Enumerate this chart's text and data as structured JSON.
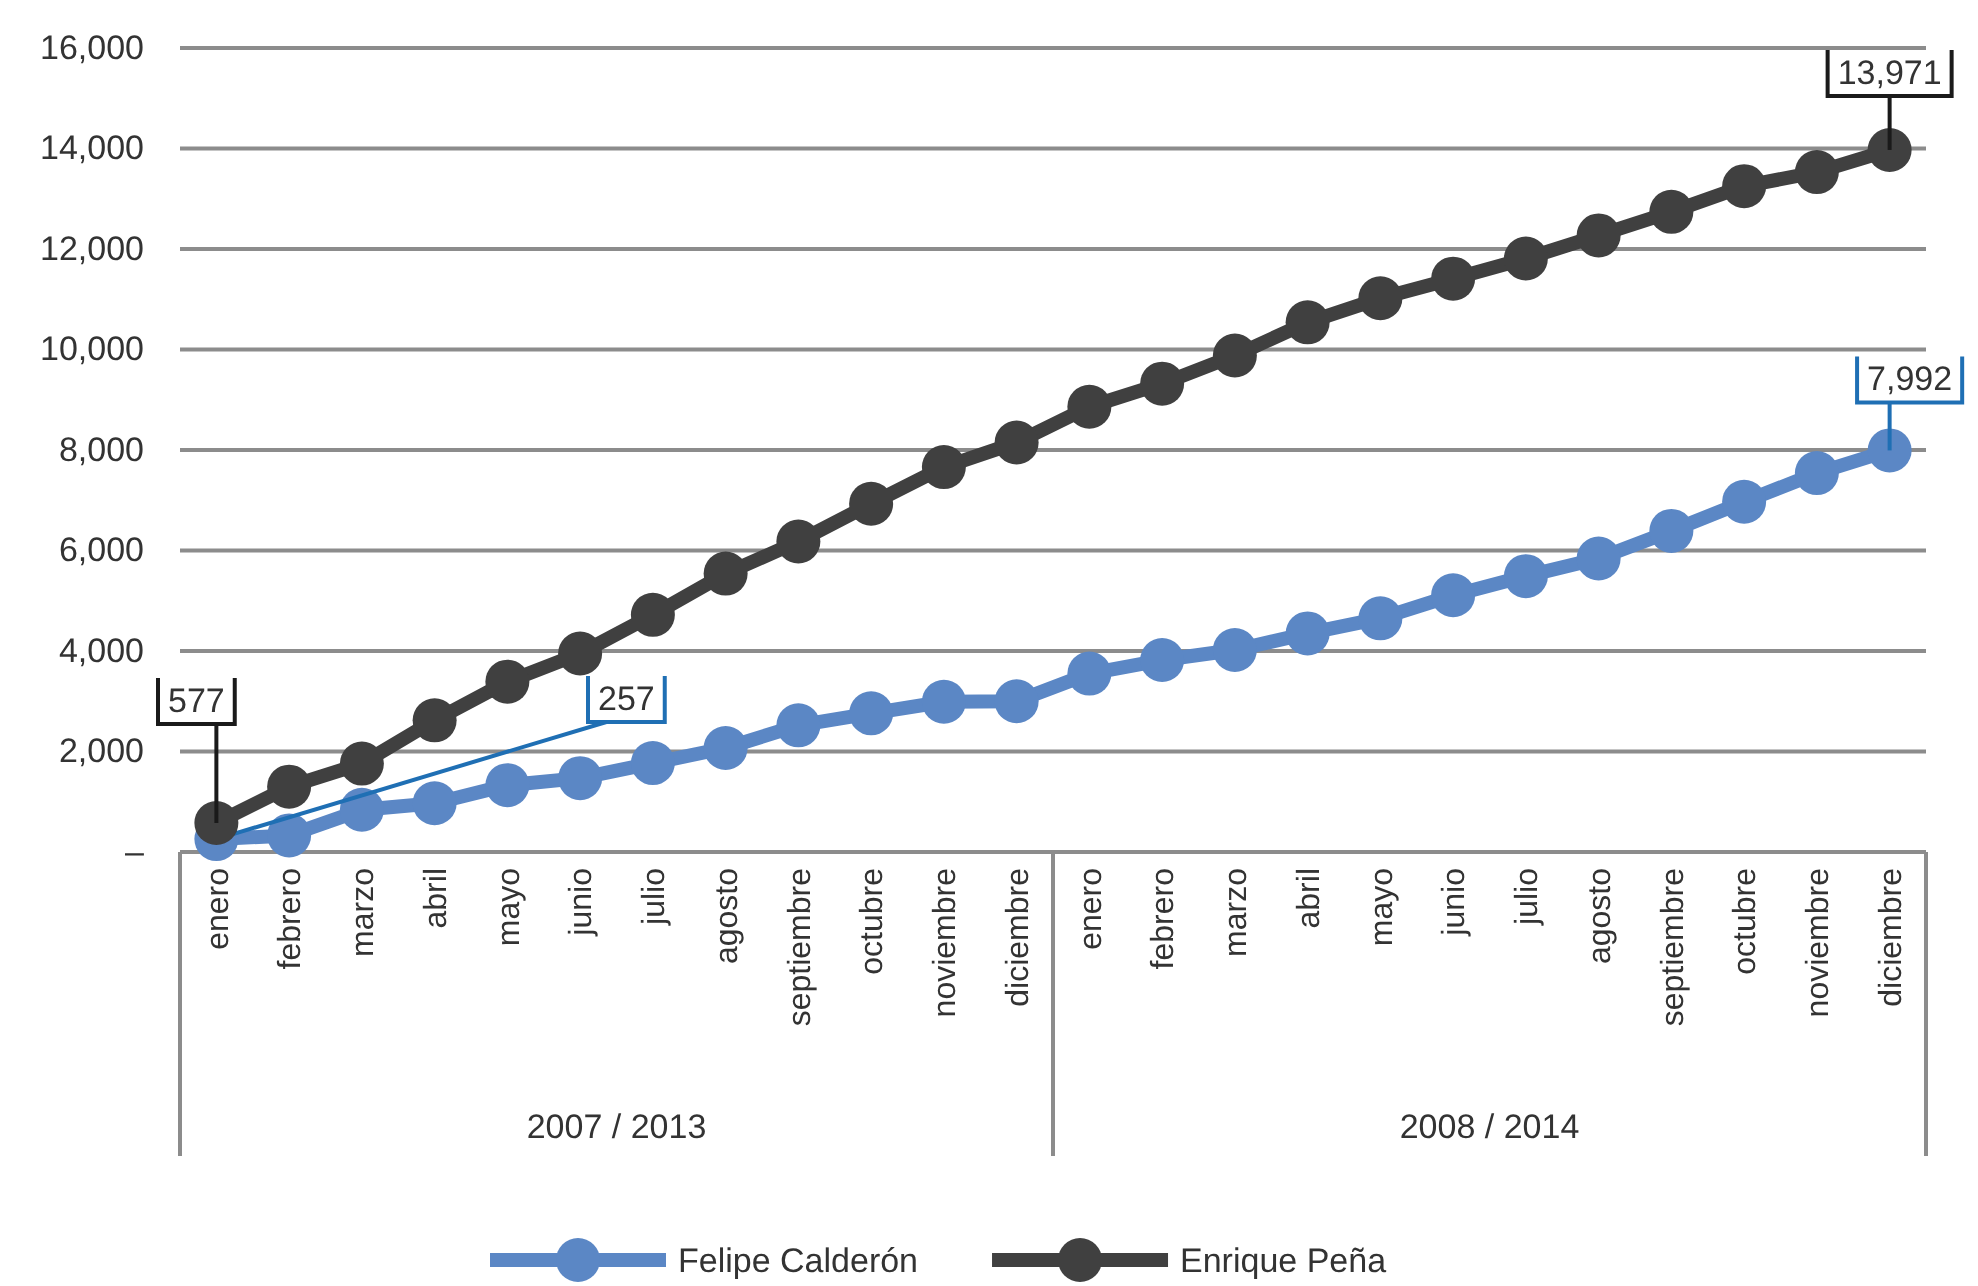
{
  "chart_data": {
    "type": "line",
    "categories": [
      "enero",
      "febrero",
      "marzo",
      "abril",
      "mayo",
      "junio",
      "julio",
      "agosto",
      "septiembre",
      "octubre",
      "noviembre",
      "diciembre",
      "enero",
      "febrero",
      "marzo",
      "abril",
      "mayo",
      "junio",
      "julio",
      "agosto",
      "septiembre",
      "octubre",
      "noviembre",
      "diciembre"
    ],
    "series": [
      {
        "name": "Felipe Calderón",
        "color": "#5b87c5",
        "values": [
          257,
          330,
          840,
          970,
          1330,
          1470,
          1770,
          2070,
          2520,
          2760,
          2990,
          3000,
          3550,
          3820,
          4020,
          4350,
          4650,
          5110,
          5490,
          5840,
          6390,
          6970,
          7540,
          7992
        ],
        "value_labels": [
          "257",
          null,
          null,
          null,
          null,
          null,
          null,
          null,
          null,
          null,
          null,
          null,
          null,
          null,
          null,
          null,
          null,
          null,
          null,
          null,
          null,
          null,
          null,
          "7,992"
        ]
      },
      {
        "name": "Enrique Peña",
        "color": "#404040",
        "values": [
          577,
          1300,
          1760,
          2620,
          3390,
          3950,
          4720,
          5540,
          6180,
          6930,
          7660,
          8150,
          8860,
          9320,
          9880,
          10540,
          11020,
          11410,
          11810,
          12270,
          12740,
          13250,
          13530,
          13971
        ],
        "value_labels": [
          "577",
          null,
          null,
          null,
          null,
          null,
          null,
          null,
          null,
          null,
          null,
          null,
          null,
          null,
          null,
          null,
          null,
          null,
          null,
          null,
          null,
          null,
          null,
          "13,971"
        ]
      }
    ],
    "annotations": [
      "2007 / 2013",
      "2008 / 2014"
    ],
    "ylim": [
      0,
      16000
    ],
    "yticks": [
      {
        "value": 0,
        "label": "–"
      },
      {
        "value": 2000,
        "label": "2,000"
      },
      {
        "value": 4000,
        "label": "4,000"
      },
      {
        "value": 6000,
        "label": "6,000"
      },
      {
        "value": 8000,
        "label": "8,000"
      },
      {
        "value": 10000,
        "label": "10,000"
      },
      {
        "value": 12000,
        "label": "12,000"
      },
      {
        "value": 14000,
        "label": "14,000"
      },
      {
        "value": 16000,
        "label": "16,000"
      }
    ],
    "grid": "y",
    "legend": "bottom",
    "marker": "circle",
    "line_style": "solid"
  }
}
